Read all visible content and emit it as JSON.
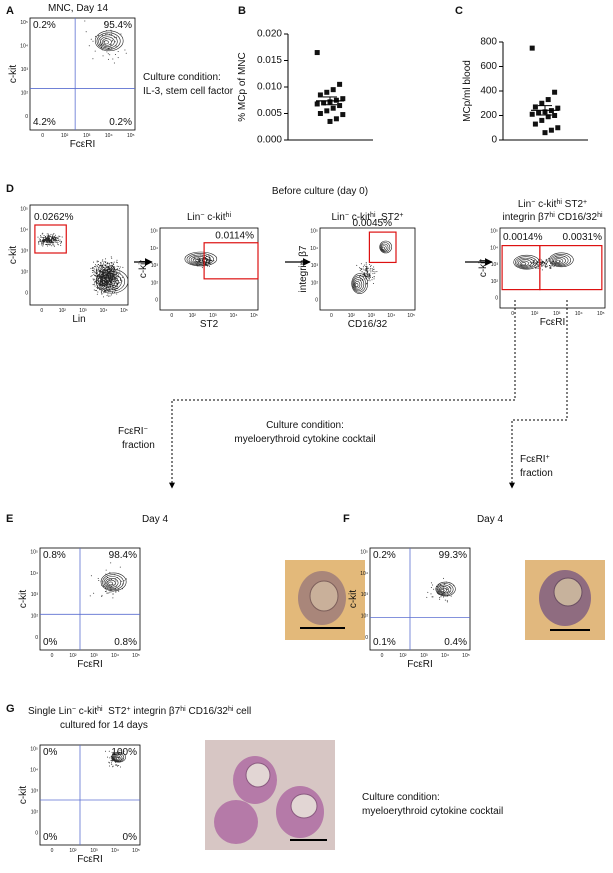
{
  "flow_ticks": [
    "0",
    "10²",
    "10³",
    "10⁴",
    "10⁵"
  ],
  "panels": {
    "A": {
      "label": "A",
      "title": "MNC, Day 14",
      "quadrants": [
        "0.2%",
        "95.4%",
        "4.2%",
        "0.2%"
      ],
      "y_label": "c-kit",
      "x_label": "FcεRI",
      "note": [
        "Culture condition:",
        "IL-3, stem cell factor"
      ]
    },
    "B": {
      "label": "B",
      "y_label": "% MCp of MNC",
      "ylim": [
        0,
        0.02
      ],
      "yticks": [
        {
          "value": 0,
          "label": "0.000"
        },
        {
          "value": 0.005,
          "label": "0.005"
        },
        {
          "value": 0.01,
          "label": "0.010"
        },
        {
          "value": 0.015,
          "label": "0.015"
        },
        {
          "value": 0.02,
          "label": "0.020"
        }
      ],
      "values": [
        0.0165,
        0.0105,
        0.0095,
        0.009,
        0.0085,
        0.0078,
        0.0075,
        0.0072,
        0.007,
        0.0068,
        0.0065,
        0.006,
        0.0055,
        0.005,
        0.0048,
        0.004,
        0.0035
      ]
    },
    "C": {
      "label": "C",
      "y_label": "MCp/ml blood",
      "ylim": [
        0,
        800
      ],
      "yticks": [
        0,
        200,
        400,
        600,
        800
      ],
      "values": [
        750,
        390,
        330,
        300,
        270,
        260,
        240,
        230,
        220,
        210,
        200,
        190,
        160,
        130,
        100,
        80,
        60
      ]
    },
    "D": {
      "label": "D",
      "title": "Before culture (day 0)",
      "plots": [
        {
          "x_label": "Lin",
          "y_label": "c-kit",
          "gates": [
            "0.0262%"
          ]
        },
        {
          "title": [
            [
              {
                "text": "Lin"
              },
              {
                "text": "−",
                "sup": true
              },
              {
                "text": " c-kit"
              },
              {
                "text": "hi",
                "sup": true
              }
            ]
          ],
          "x_label": "ST2",
          "y_label": "c-kit",
          "gates": [
            "0.0114%"
          ]
        },
        {
          "title": [
            [
              {
                "text": "Lin"
              },
              {
                "text": "−",
                "sup": true
              },
              {
                "text": " c-kit"
              },
              {
                "text": "hi",
                "sup": true
              },
              {
                "text": "  ST2"
              },
              {
                "text": "+",
                "sup": true
              }
            ]
          ],
          "x_label": "CD16/32",
          "y_label": "integrin β7",
          "gates": [
            "0.0045%"
          ]
        },
        {
          "title": [
            [
              {
                "text": "Lin"
              },
              {
                "text": "−",
                "sup": true
              },
              {
                "text": " c-kit"
              },
              {
                "text": "hi",
                "sup": true
              },
              {
                "text": " ST2"
              },
              {
                "text": "+",
                "sup": true
              }
            ],
            [
              {
                "text": "integrin β7"
              },
              {
                "text": "hi",
                "sup": true
              },
              {
                "text": " CD16/32"
              },
              {
                "text": "hi",
                "sup": true
              }
            ]
          ],
          "x_label": "FcεRI",
          "y_label": "c-kit",
          "gates": [
            "0.0014%",
            "0.0031%"
          ]
        }
      ],
      "left_branch": [
        [
          {
            "text": "FcεRI"
          },
          {
            "text": "−",
            "sup": true
          }
        ],
        [
          {
            "text": "fraction"
          }
        ]
      ],
      "center_note": [
        "Culture condition:",
        "myeloerythroid cytokine cocktail"
      ],
      "right_branch": [
        [
          {
            "text": "FcεRI"
          },
          {
            "text": "+",
            "sup": true
          }
        ],
        [
          {
            "text": "fraction"
          }
        ]
      ]
    },
    "E": {
      "label": "E",
      "title": "Day 4",
      "quadrants": [
        "0.8%",
        "98.4%",
        "0%",
        "0.8%"
      ],
      "y_label": "c-kit",
      "x_label": "FcεRI"
    },
    "F": {
      "label": "F",
      "title": "Day 4",
      "quadrants": [
        "0.2%",
        "99.3%",
        "0.1%",
        "0.4%"
      ],
      "y_label": "c-kit",
      "x_label": "FcεRI"
    },
    "G": {
      "label": "G",
      "title": [
        [
          {
            "text": "Single Lin"
          },
          {
            "text": "−",
            "sup": true
          },
          {
            "text": " c-kit"
          },
          {
            "text": "hi",
            "sup": true
          },
          {
            "text": "  ST2"
          },
          {
            "text": "+",
            "sup": true
          },
          {
            "text": " integrin β7"
          },
          {
            "text": "hi",
            "sup": true
          },
          {
            "text": " CD16/32"
          },
          {
            "text": "hi",
            "sup": true
          },
          {
            "text": " cell"
          }
        ],
        [
          {
            "text": "cultured for 14 days"
          }
        ]
      ],
      "quadrants": [
        "0%",
        "100%",
        "0%",
        "0%"
      ],
      "y_label": "c-kit",
      "x_label": "FcεRI",
      "note": [
        "Culture condition:",
        "myeloerythroid cytokine cocktail"
      ]
    }
  }
}
